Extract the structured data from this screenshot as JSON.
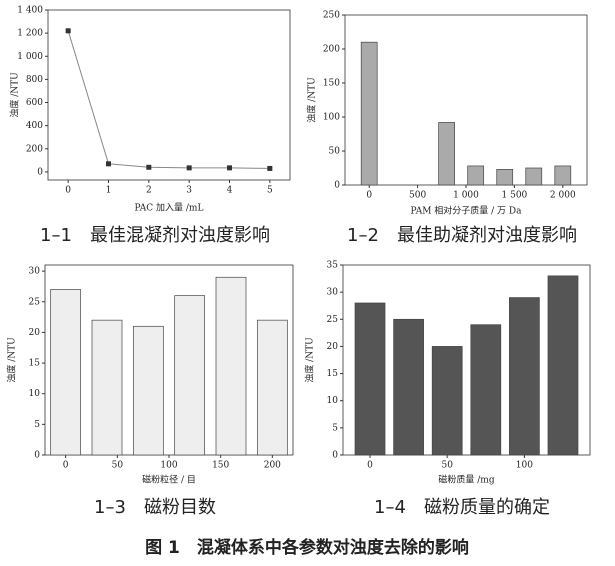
{
  "chart_data": [
    {
      "type": "line",
      "caption": "1–1　最佳混凝剂对浊度影响",
      "x_label": "PAC 加入量 /mL",
      "y_label": "浊度 /NTU",
      "x": [
        0,
        1,
        2,
        3,
        4,
        5
      ],
      "values": [
        1220,
        70,
        40,
        35,
        35,
        30
      ],
      "color": "#333333",
      "line_color": "#888888",
      "xlim": [
        -0.5,
        5.5
      ],
      "xticks": [
        0,
        1,
        2,
        3,
        4,
        5
      ],
      "ylim": [
        -70,
        1400
      ],
      "yticks": [
        0,
        200,
        400,
        600,
        800,
        {
          "value": 1000,
          "label": "1 000"
        },
        {
          "value": 1200,
          "label": "1 200"
        },
        {
          "value": 1400,
          "label": "1 400"
        }
      ]
    },
    {
      "type": "bar",
      "caption": "1–2　最佳助凝剂对浊度影响",
      "x_label": "PAM 相对分子质量 / 万 Da",
      "y_label": "浊度 /NTU",
      "x": [
        0,
        800,
        1100,
        1400,
        1700,
        2000
      ],
      "values": [
        210,
        92,
        28,
        23,
        25,
        28
      ],
      "color": "#aaaaaa",
      "xlim": [
        -250,
        2250
      ],
      "xticks": [
        0,
        500,
        {
          "value": 1000,
          "label": "1 000"
        },
        {
          "value": 1500,
          "label": "1 500"
        },
        {
          "value": 2000,
          "label": "2 000"
        }
      ],
      "ylim": [
        0,
        250
      ],
      "yticks": [
        0,
        50,
        100,
        150,
        200,
        250
      ]
    },
    {
      "type": "bar",
      "caption": "1–3　磁粉目数",
      "x_label": "磁粉粒径 / 目",
      "y_label": "浊度 /NTU",
      "x": [
        0,
        40,
        80,
        120,
        160,
        200
      ],
      "values": [
        27,
        22,
        21,
        26,
        29,
        22
      ],
      "color": "#eeeeee",
      "xlim": [
        -20,
        220
      ],
      "xticks": [
        0,
        50,
        100,
        150,
        200
      ],
      "ylim": [
        0,
        31
      ],
      "yticks": [
        0,
        5,
        10,
        15,
        20,
        25,
        30
      ]
    },
    {
      "type": "bar",
      "caption": "1–4　磁粉质量的确定",
      "x_label": "磁粉质量 /mg",
      "y_label": "浊度 /NTU",
      "x": [
        0,
        25,
        50,
        75,
        100,
        125
      ],
      "values": [
        28,
        25,
        20,
        24,
        29,
        33
      ],
      "color": "#555555",
      "xlim": [
        -17.5,
        142.5
      ],
      "xticks": [
        0,
        50,
        100
      ],
      "ylim": [
        0,
        35
      ],
      "yticks": [
        0,
        5,
        10,
        15,
        20,
        25,
        30,
        35
      ]
    }
  ],
  "figure_caption": "图 1　混凝体系中各参数对浊度去除的影响"
}
